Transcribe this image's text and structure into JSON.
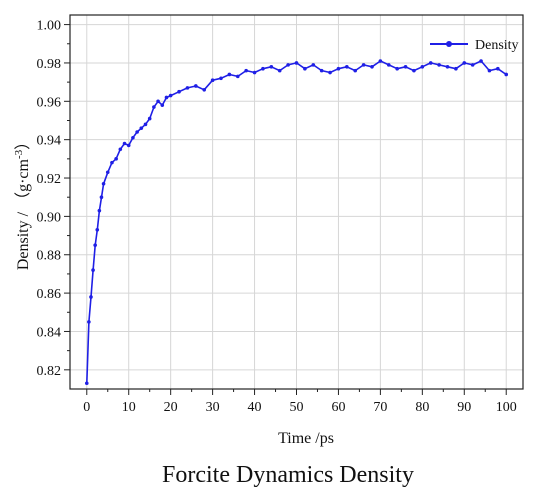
{
  "caption": "Forcite Dynamics Density",
  "chart_data": {
    "type": "line",
    "xlabel": "Time /ps",
    "ylabel_main": "Density / （g·cm",
    "ylabel_sup": "-3",
    "ylabel_close": "）",
    "xlim": [
      -4,
      104
    ],
    "ylim": [
      0.81,
      1.005
    ],
    "xticks": [
      0,
      10,
      20,
      30,
      40,
      50,
      60,
      70,
      80,
      90,
      100
    ],
    "xtick_labels": [
      "0",
      "10",
      "20",
      "30",
      "40",
      "50",
      "60",
      "70",
      "80",
      "90",
      "100"
    ],
    "yticks": [
      0.82,
      0.84,
      0.86,
      0.88,
      0.9,
      0.92,
      0.94,
      0.96,
      0.98,
      1.0
    ],
    "ytick_labels": [
      "0.82",
      "0.84",
      "0.86",
      "0.88",
      "0.90",
      "0.92",
      "0.94",
      "0.96",
      "0.98",
      "1.00"
    ],
    "grid": true,
    "legend_position": "top-right",
    "series_color": "#1f1fe6",
    "series": [
      {
        "name": "Density",
        "x": [
          0,
          0.5,
          1,
          1.5,
          2,
          2.5,
          3,
          3.5,
          4,
          5,
          6,
          7,
          8,
          9,
          10,
          11,
          12,
          13,
          14,
          15,
          16,
          17,
          18,
          19,
          20,
          22,
          24,
          26,
          28,
          30,
          32,
          34,
          36,
          38,
          40,
          42,
          44,
          46,
          48,
          50,
          52,
          54,
          56,
          58,
          60,
          62,
          64,
          66,
          68,
          70,
          72,
          74,
          76,
          78,
          80,
          82,
          84,
          86,
          88,
          90,
          92,
          94,
          96,
          98,
          100
        ],
        "y": [
          0.813,
          0.845,
          0.858,
          0.872,
          0.885,
          0.893,
          0.903,
          0.91,
          0.917,
          0.923,
          0.928,
          0.93,
          0.935,
          0.938,
          0.937,
          0.941,
          0.944,
          0.946,
          0.948,
          0.951,
          0.957,
          0.96,
          0.958,
          0.962,
          0.963,
          0.965,
          0.967,
          0.968,
          0.966,
          0.971,
          0.972,
          0.974,
          0.973,
          0.976,
          0.975,
          0.977,
          0.978,
          0.976,
          0.979,
          0.98,
          0.977,
          0.979,
          0.976,
          0.975,
          0.977,
          0.978,
          0.976,
          0.979,
          0.978,
          0.981,
          0.979,
          0.977,
          0.978,
          0.976,
          0.978,
          0.98,
          0.979,
          0.978,
          0.977,
          0.98,
          0.979,
          0.981,
          0.976,
          0.977,
          0.974
        ]
      }
    ]
  }
}
